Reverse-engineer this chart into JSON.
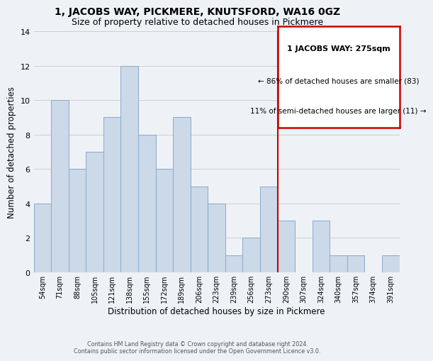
{
  "title": "1, JACOBS WAY, PICKMERE, KNUTSFORD, WA16 0GZ",
  "subtitle": "Size of property relative to detached houses in Pickmere",
  "xlabel": "Distribution of detached houses by size in Pickmere",
  "ylabel": "Number of detached properties",
  "bar_labels": [
    "54sqm",
    "71sqm",
    "88sqm",
    "105sqm",
    "121sqm",
    "138sqm",
    "155sqm",
    "172sqm",
    "189sqm",
    "206sqm",
    "223sqm",
    "239sqm",
    "256sqm",
    "273sqm",
    "290sqm",
    "307sqm",
    "324sqm",
    "340sqm",
    "357sqm",
    "374sqm",
    "391sqm"
  ],
  "bar_values": [
    4,
    10,
    6,
    7,
    9,
    12,
    8,
    6,
    9,
    5,
    4,
    1,
    2,
    5,
    3,
    0,
    3,
    1,
    1,
    0,
    1
  ],
  "bar_color": "#ccd9e8",
  "bar_edge_color": "#8aaac8",
  "highlight_bar_index": 13,
  "highlight_line_color": "#cc0000",
  "annotation_title": "1 JACOBS WAY: 275sqm",
  "annotation_line1": "← 86% of detached houses are smaller (83)",
  "annotation_line2": "11% of semi-detached houses are larger (11) →",
  "annotation_box_color": "#ffffff",
  "annotation_box_edge": "#cc0000",
  "ylim": [
    0,
    14
  ],
  "yticks": [
    0,
    2,
    4,
    6,
    8,
    10,
    12,
    14
  ],
  "footer1": "Contains HM Land Registry data © Crown copyright and database right 2024.",
  "footer2": "Contains public sector information licensed under the Open Government Licence v3.0.",
  "background_color": "#eef2f7",
  "plot_background": "#eef2f7",
  "grid_color": "#c8c8c8",
  "title_fontsize": 10,
  "subtitle_fontsize": 9
}
